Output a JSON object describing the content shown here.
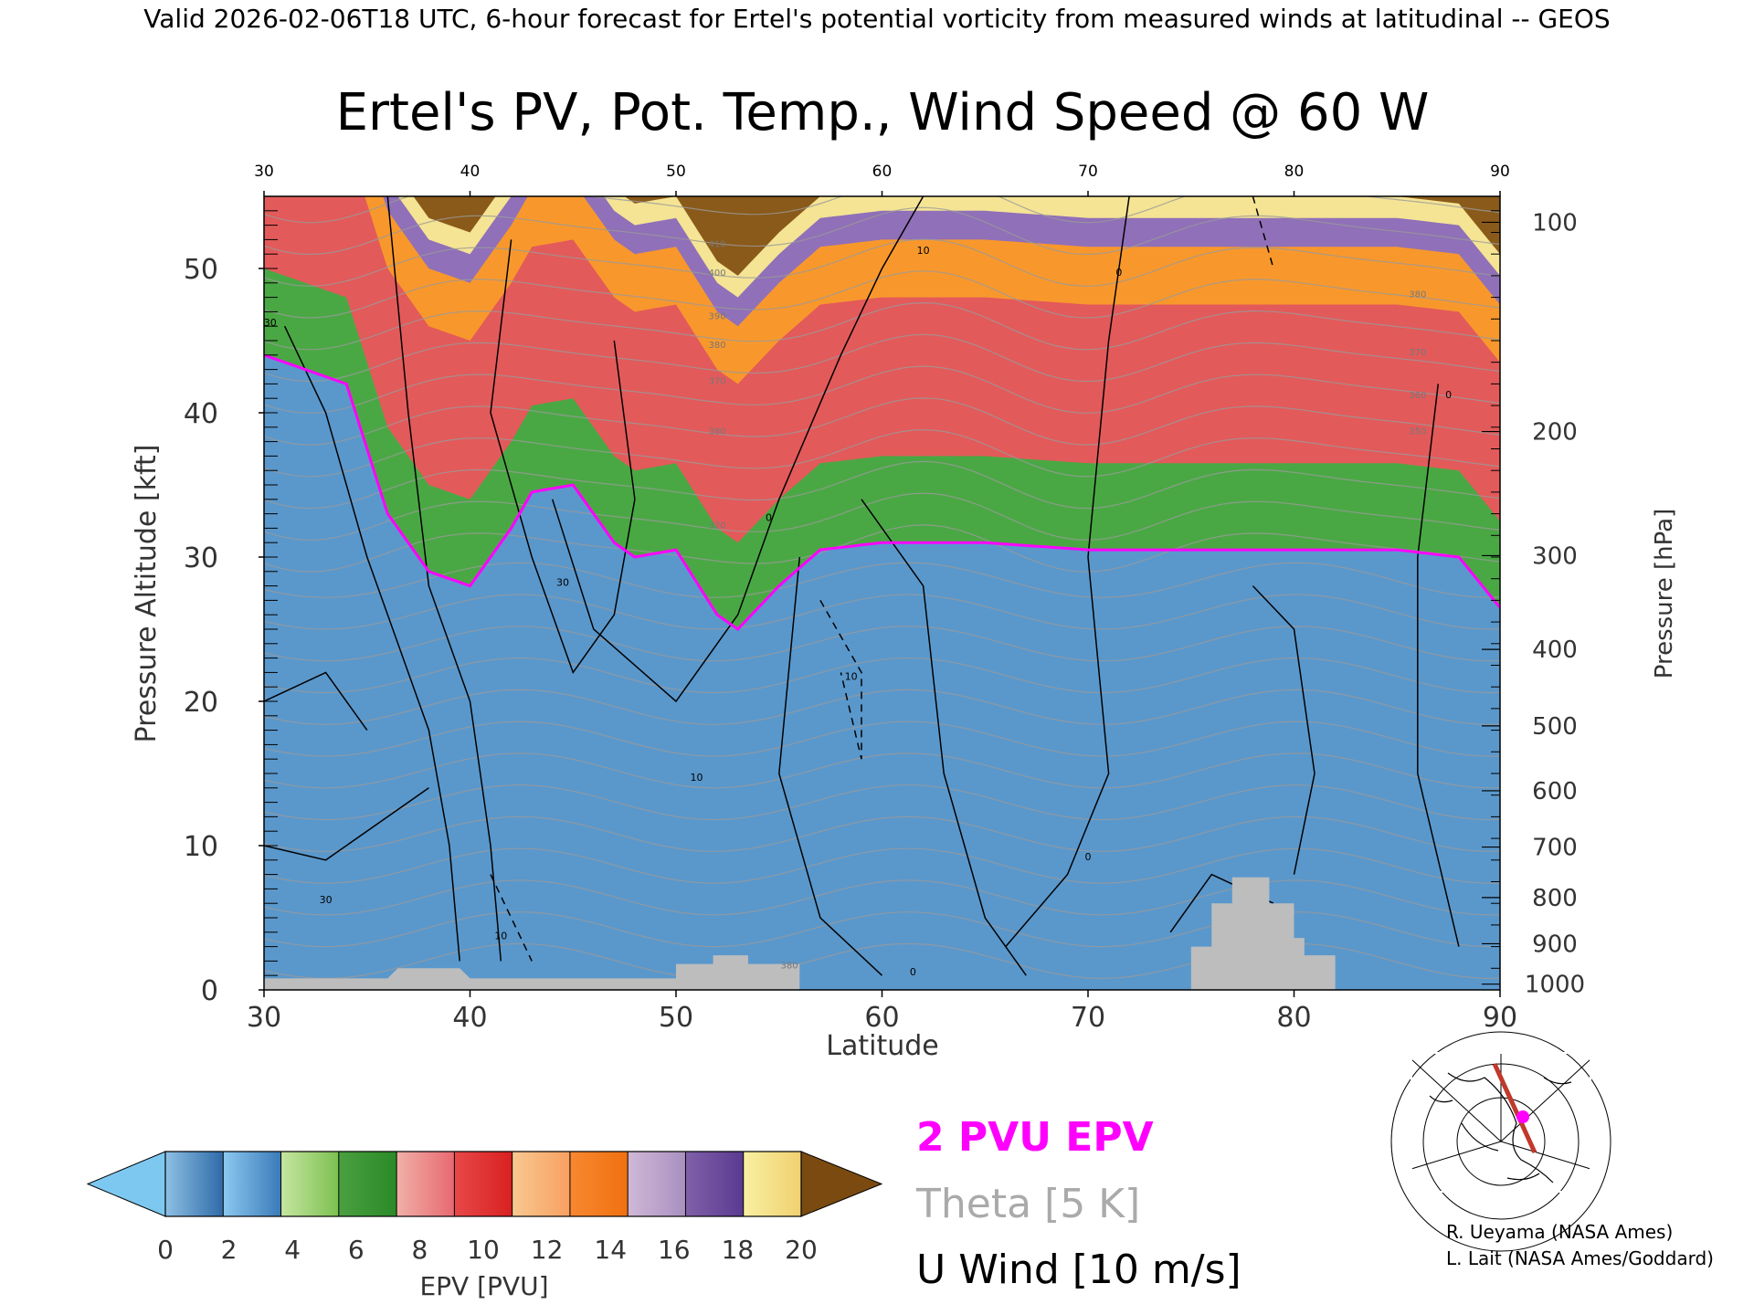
{
  "header": "Valid 2026-02-06T18 UTC, 6-hour forecast for Ertel's potential vorticity from measured winds at latitudinal -- GEOS",
  "chart_data": {
    "type": "heatmap",
    "title": "Ertel's PV, Pot. Temp., Wind Speed @ 60 W",
    "xlabel": "Latitude",
    "ylabel": "Pressure Altitude [kft]",
    "y2label": "Pressure [hPa]",
    "xlim": [
      30,
      90
    ],
    "ylim": [
      0,
      55
    ],
    "xticks": [
      30,
      40,
      50,
      60,
      70,
      80,
      90
    ],
    "yticks": [
      0,
      10,
      20,
      30,
      40,
      50
    ],
    "top_xticks": [
      30,
      40,
      50,
      60,
      70,
      80,
      90
    ],
    "pressure_ticks": [
      {
        "label": "100",
        "kft": 53.2
      },
      {
        "label": "200",
        "kft": 38.7
      },
      {
        "label": "300",
        "kft": 30.1
      },
      {
        "label": "400",
        "kft": 23.6
      },
      {
        "label": "500",
        "kft": 18.3
      },
      {
        "label": "600",
        "kft": 13.8
      },
      {
        "label": "700",
        "kft": 9.9
      },
      {
        "label": "800",
        "kft": 6.4
      },
      {
        "label": "900",
        "kft": 3.2
      },
      {
        "label": "1000",
        "kft": 0.4
      }
    ],
    "colorbar": {
      "label": "EPV [PVU]",
      "ticks": [
        "0",
        "2",
        "4",
        "6",
        "8",
        "10",
        "12",
        "14",
        "16",
        "18",
        "20"
      ],
      "under_color": "#7dc8f0",
      "over_color": "#7a4a10",
      "segments": [
        {
          "from": "#8ec0e4",
          "to": "#2e6aa8"
        },
        {
          "from": "#8cc8f0",
          "to": "#3a7ab8"
        },
        {
          "from": "#c6e6a0",
          "to": "#7cc050"
        },
        {
          "from": "#4aa040",
          "to": "#2a8a28"
        },
        {
          "from": "#f0b0a8",
          "to": "#e86870"
        },
        {
          "from": "#e84848",
          "to": "#d82020"
        },
        {
          "from": "#f8c890",
          "to": "#f8a060"
        },
        {
          "from": "#f88830",
          "to": "#f07010"
        },
        {
          "from": "#d0b8d8",
          "to": "#a890c0"
        },
        {
          "from": "#8060a8",
          "to": "#5a3a90"
        },
        {
          "from": "#f8f0a0",
          "to": "#f0d070"
        }
      ]
    },
    "legend": [
      {
        "text": "2 PVU EPV",
        "color": "#ff00ff"
      },
      {
        "text": "Theta [5 K]",
        "color": "#aaaaaa"
      },
      {
        "text": "U Wind [10 m/s]",
        "color": "#000000"
      }
    ],
    "bands": [
      {
        "name": "troposphere",
        "color": "#5a98cc"
      },
      {
        "name": "green",
        "color": "#4aa844"
      },
      {
        "name": "red",
        "color": "#e35a5a"
      },
      {
        "name": "orange",
        "color": "#f8982c"
      },
      {
        "name": "purple",
        "color": "#9070b8"
      },
      {
        "name": "yellow",
        "color": "#f4e494"
      },
      {
        "name": "brown",
        "color": "#8a5a1a"
      }
    ],
    "tropopause_kft": [
      {
        "lat": 30,
        "kft": 44
      },
      {
        "lat": 34,
        "kft": 42
      },
      {
        "lat": 36,
        "kft": 33
      },
      {
        "lat": 38,
        "kft": 29
      },
      {
        "lat": 40,
        "kft": 28
      },
      {
        "lat": 41,
        "kft": 30
      },
      {
        "lat": 42,
        "kft": 32
      },
      {
        "lat": 43,
        "kft": 34.5
      },
      {
        "lat": 45,
        "kft": 35
      },
      {
        "lat": 47,
        "kft": 31
      },
      {
        "lat": 48,
        "kft": 30
      },
      {
        "lat": 50,
        "kft": 30.5
      },
      {
        "lat": 52,
        "kft": 26
      },
      {
        "lat": 53,
        "kft": 25
      },
      {
        "lat": 55,
        "kft": 28
      },
      {
        "lat": 57,
        "kft": 30.5
      },
      {
        "lat": 60,
        "kft": 31
      },
      {
        "lat": 65,
        "kft": 31
      },
      {
        "lat": 70,
        "kft": 30.5
      },
      {
        "lat": 75,
        "kft": 30.5
      },
      {
        "lat": 80,
        "kft": 30.5
      },
      {
        "lat": 85,
        "kft": 30.5
      },
      {
        "lat": 88,
        "kft": 30
      },
      {
        "lat": 90,
        "kft": 26.5
      }
    ],
    "stratosphere_levels_kft": [
      {
        "band": "green",
        "offset": 0
      },
      {
        "band": "red",
        "offset": 6
      },
      {
        "band": "orange",
        "offset": 17
      },
      {
        "band": "purple",
        "offset": 21
      },
      {
        "band": "yellow",
        "offset": 23
      },
      {
        "band": "brown",
        "offset": 24.5
      }
    ],
    "terrain": [
      {
        "lat": 30,
        "kft": 0.8
      },
      {
        "lat": 36,
        "kft": 0.8
      },
      {
        "lat": 36.5,
        "kft": 1.5
      },
      {
        "lat": 39.5,
        "kft": 1.5
      },
      {
        "lat": 40,
        "kft": 0.8
      },
      {
        "lat": 50,
        "kft": 0.8
      },
      {
        "lat": 50,
        "kft": 1.8
      },
      {
        "lat": 51.8,
        "kft": 1.8
      },
      {
        "lat": 51.8,
        "kft": 2.4
      },
      {
        "lat": 53.5,
        "kft": 2.4
      },
      {
        "lat": 53.5,
        "kft": 1.8
      },
      {
        "lat": 56,
        "kft": 1.8
      },
      {
        "lat": 56,
        "kft": 0
      },
      {
        "lat": 75,
        "kft": 0
      },
      {
        "lat": 75,
        "kft": 3
      },
      {
        "lat": 76,
        "kft": 3
      },
      {
        "lat": 76,
        "kft": 6
      },
      {
        "lat": 77,
        "kft": 6
      },
      {
        "lat": 77,
        "kft": 7.8
      },
      {
        "lat": 78.8,
        "kft": 7.8
      },
      {
        "lat": 78.8,
        "kft": 6
      },
      {
        "lat": 80,
        "kft": 6
      },
      {
        "lat": 80,
        "kft": 3.6
      },
      {
        "lat": 80.5,
        "kft": 3.6
      },
      {
        "lat": 80.5,
        "kft": 2.4
      },
      {
        "lat": 82,
        "kft": 2.4
      },
      {
        "lat": 82,
        "kft": 0
      }
    ],
    "wind_contour_labels": [
      {
        "text": "30",
        "lat": 30.3,
        "kft": 46
      },
      {
        "text": "30",
        "lat": 33,
        "kft": 6
      },
      {
        "text": "10",
        "lat": 51,
        "kft": 14.5
      },
      {
        "text": "30",
        "lat": 44.5,
        "kft": 28
      },
      {
        "text": "10",
        "lat": 62,
        "kft": 51
      },
      {
        "text": "0",
        "lat": 71.5,
        "kft": 49.5
      },
      {
        "text": "0",
        "lat": 54.5,
        "kft": 32.5
      },
      {
        "text": "0",
        "lat": 70,
        "kft": 9
      },
      {
        "text": "0",
        "lat": 61.5,
        "kft": 1
      },
      {
        "text": "0",
        "lat": 87.5,
        "kft": 41
      },
      {
        "text": "10",
        "lat": 58.5,
        "kft": 21.5
      },
      {
        "text": "10",
        "lat": 41.5,
        "kft": 3.5
      }
    ],
    "theta_labels": [
      {
        "text": "410",
        "lat": 52,
        "kft": 51.5
      },
      {
        "text": "400",
        "lat": 52,
        "kft": 49.5
      },
      {
        "text": "390",
        "lat": 52,
        "kft": 46.5
      },
      {
        "text": "380",
        "lat": 52,
        "kft": 44.5
      },
      {
        "text": "370",
        "lat": 52,
        "kft": 42
      },
      {
        "text": "380",
        "lat": 52,
        "kft": 38.5
      },
      {
        "text": "320",
        "lat": 52,
        "kft": 32
      },
      {
        "text": "380",
        "lat": 86,
        "kft": 48
      },
      {
        "text": "370",
        "lat": 86,
        "kft": 44
      },
      {
        "text": "360",
        "lat": 86,
        "kft": 41
      },
      {
        "text": "350",
        "lat": 86,
        "kft": 38.5
      },
      {
        "text": "380",
        "lat": 55.5,
        "kft": 1.5
      }
    ],
    "credits": [
      "R. Ueyama (NASA Ames)",
      "L. Lait (NASA Ames/Goddard)"
    ]
  }
}
